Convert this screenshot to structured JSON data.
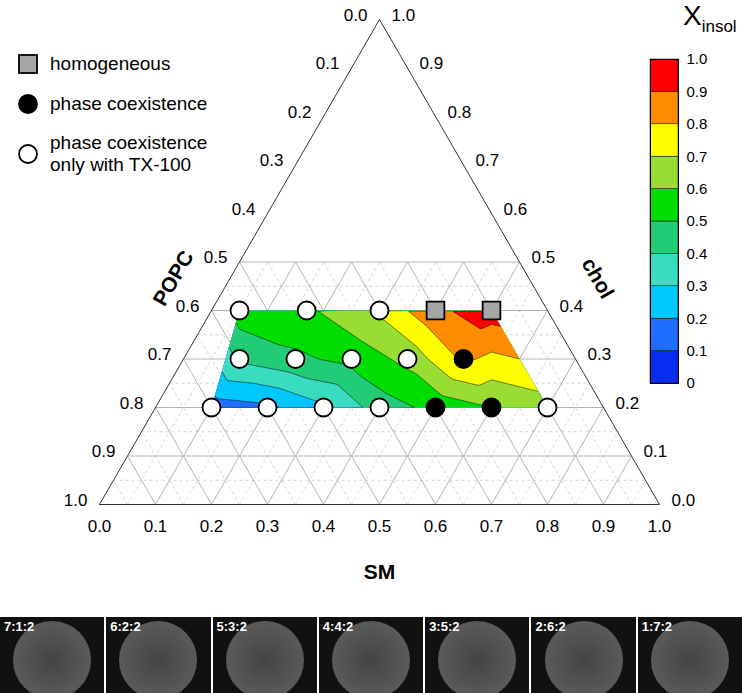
{
  "chart_data": {
    "type": "ternary_contour",
    "axes": [
      {
        "label": "POPC",
        "lim": [
          0,
          1
        ],
        "ticks": [
          {
            "value": 0,
            "label": "0.0"
          },
          0.1,
          0.2,
          0.3,
          0.4,
          0.5,
          0.6,
          0.7,
          0.8,
          0.9,
          {
            "value": 1,
            "label": "1.0"
          }
        ]
      },
      {
        "label": "SM",
        "lim": [
          0,
          1
        ],
        "ticks": [
          {
            "value": 0,
            "label": "0.0"
          },
          0.1,
          0.2,
          0.3,
          0.4,
          0.5,
          0.6,
          0.7,
          0.8,
          0.9,
          {
            "value": 1,
            "label": "1.0"
          }
        ]
      },
      {
        "label": "chol",
        "lim": [
          0,
          1
        ],
        "ticks": [
          {
            "value": 0,
            "label": "0.0"
          },
          0.1,
          0.2,
          0.3,
          0.4,
          0.5,
          0.6,
          0.7,
          0.8,
          0.9,
          {
            "value": 1,
            "label": "1.0"
          }
        ]
      }
    ],
    "grid": true,
    "grid_chol_max": 0.5,
    "legend": "top-left",
    "series": [
      {
        "name": "homogeneous",
        "marker": "square",
        "color": "#a6a6a6"
      },
      {
        "name": "phase coexistence",
        "marker": "circle",
        "color": "#000000"
      },
      {
        "name": "phase coexistence only with TX-100",
        "marker": "circle",
        "color": "#ffffff"
      }
    ],
    "points": [
      {
        "composition": [
          0.7,
          0.1,
          0.2
        ],
        "state": "phase coexistence only with TX-100",
        "X_insol": 0.15
      },
      {
        "composition": [
          0.6,
          0.2,
          0.2
        ],
        "state": "phase coexistence only with TX-100",
        "X_insol": 0.18
      },
      {
        "composition": [
          0.5,
          0.3,
          0.2
        ],
        "state": "phase coexistence only with TX-100",
        "X_insol": 0.28
      },
      {
        "composition": [
          0.4,
          0.4,
          0.2
        ],
        "state": "phase coexistence only with TX-100",
        "X_insol": 0.45
      },
      {
        "composition": [
          0.3,
          0.5,
          0.2
        ],
        "state": "phase coexistence",
        "X_insol": 0.53
      },
      {
        "composition": [
          0.2,
          0.6,
          0.2
        ],
        "state": "phase coexistence",
        "X_insol": 0.6
      },
      {
        "composition": [
          0.1,
          0.7,
          0.2
        ],
        "state": "phase coexistence only with TX-100",
        "X_insol": 0.65
      },
      {
        "composition": [
          0.6,
          0.1,
          0.3
        ],
        "state": "phase coexistence only with TX-100",
        "X_insol": 0.42
      },
      {
        "composition": [
          0.5,
          0.2,
          0.3
        ],
        "state": "phase coexistence only with TX-100",
        "X_insol": 0.48
      },
      {
        "composition": [
          0.4,
          0.3,
          0.3
        ],
        "state": "phase coexistence only with TX-100",
        "X_insol": 0.53
      },
      {
        "composition": [
          0.3,
          0.4,
          0.3
        ],
        "state": "phase coexistence only with TX-100",
        "X_insol": 0.63
      },
      {
        "composition": [
          0.2,
          0.5,
          0.3
        ],
        "state": "phase coexistence",
        "X_insol": 0.82
      },
      {
        "composition": [
          0.55,
          0.05,
          0.4
        ],
        "state": "phase coexistence only with TX-100",
        "X_insol": 0.55
      },
      {
        "composition": [
          0.43,
          0.17,
          0.4
        ],
        "state": "phase coexistence only with TX-100",
        "X_insol": 0.58
      },
      {
        "composition": [
          0.3,
          0.3,
          0.4
        ],
        "state": "phase coexistence only with TX-100",
        "X_insol": 0.72
      },
      {
        "composition": [
          0.2,
          0.4,
          0.4
        ],
        "state": "homogeneous",
        "X_insol": 0.88
      },
      {
        "composition": [
          0.1,
          0.5,
          0.4
        ],
        "state": "homogeneous",
        "X_insol": 0.95
      }
    ],
    "colorbar": {
      "label": "X",
      "label_sub": "insol",
      "lim": [
        0,
        1
      ],
      "ticks": [
        0,
        0.1,
        0.2,
        0.3,
        0.4,
        0.5,
        0.6,
        0.7,
        0.8,
        0.9,
        {
          "value": 1,
          "label": "1.0"
        }
      ],
      "colors": [
        "#0a2cf0",
        "#1e6fff",
        "#00c8ff",
        "#3adcc0",
        "#22cc77",
        "#00dd00",
        "#99dd33",
        "#ffff00",
        "#ff8c00",
        "#ff0000"
      ]
    },
    "micrograph_labels": [
      "7:1:2",
      "6:2:2",
      "5:3:2",
      "4:4:2",
      "3:5:2",
      "2:6:2",
      "1:7:2"
    ]
  }
}
